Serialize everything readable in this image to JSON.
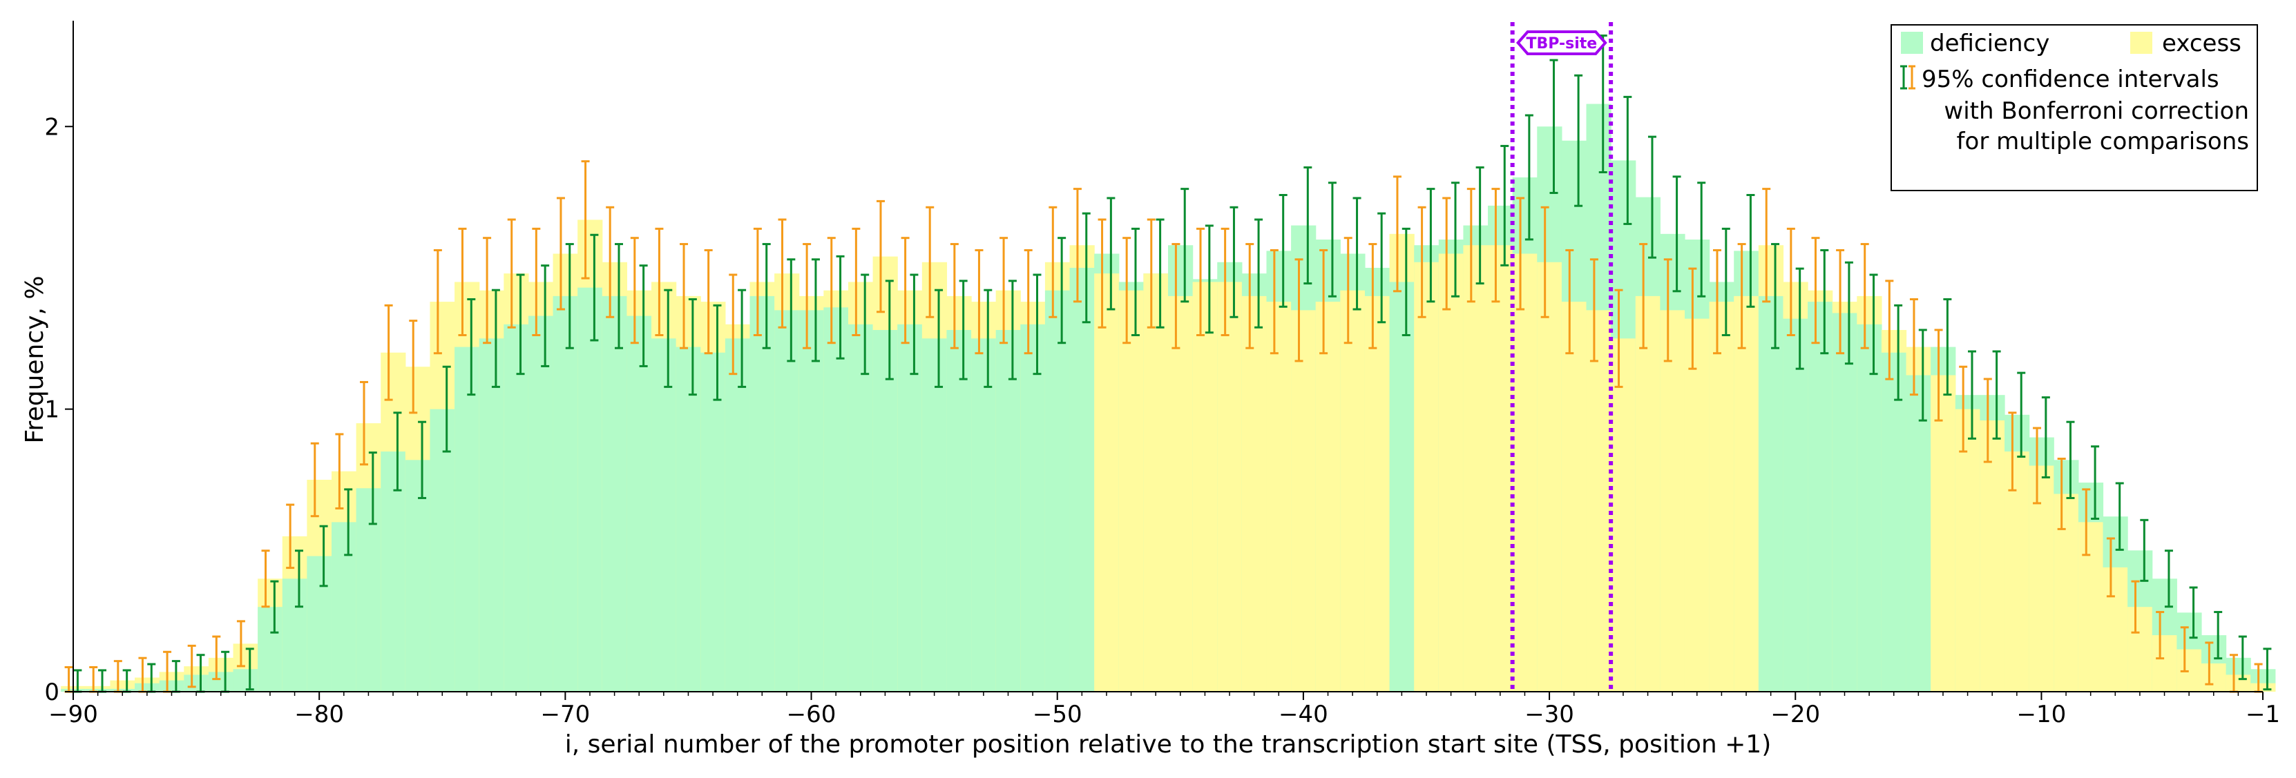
{
  "chart_data": {
    "type": "bar",
    "xlabel": "i, serial number of the promoter position relative to the transcription start site (TSS, position +1)",
    "ylabel": "Frequency, %",
    "xlim": [
      -90,
      -1
    ],
    "ylim": [
      0,
      2.35
    ],
    "x_ticks": [
      -90,
      -80,
      -70,
      -60,
      -50,
      -40,
      -30,
      -20,
      -10,
      -1
    ],
    "y_ticks": [
      0,
      1,
      2
    ],
    "x_tick_labels": [
      "−90",
      "−80",
      "−70",
      "−60",
      "−50",
      "−40",
      "−30",
      "−20",
      "−10",
      "−1"
    ],
    "y_tick_labels": [
      "0",
      "1",
      "2"
    ],
    "x": [
      -90,
      -89,
      -88,
      -87,
      -86,
      -85,
      -84,
      -83,
      -82,
      -81,
      -80,
      -79,
      -78,
      -77,
      -76,
      -75,
      -74,
      -73,
      -72,
      -71,
      -70,
      -69,
      -68,
      -67,
      -66,
      -65,
      -64,
      -63,
      -62,
      -61,
      -60,
      -59,
      -58,
      -57,
      -56,
      -55,
      -54,
      -53,
      -52,
      -51,
      -50,
      -49,
      -48,
      -47,
      -46,
      -45,
      -44,
      -43,
      -42,
      -41,
      -40,
      -39,
      -38,
      -37,
      -36,
      -35,
      -34,
      -33,
      -32,
      -31,
      -30,
      -29,
      -28,
      -27,
      -26,
      -25,
      -24,
      -23,
      -22,
      -21,
      -20,
      -19,
      -18,
      -17,
      -16,
      -15,
      -14,
      -13,
      -12,
      -11,
      -10,
      -9,
      -8,
      -7,
      -6,
      -5,
      -4,
      -3,
      -2,
      -1
    ],
    "series": [
      {
        "name": "deficiency",
        "color": "#b3fbc8",
        "values": [
          0.01,
          0.01,
          0.01,
          0.03,
          0.04,
          0.06,
          0.07,
          0.08,
          0.3,
          0.4,
          0.48,
          0.6,
          0.72,
          0.85,
          0.82,
          1.0,
          1.22,
          1.25,
          1.3,
          1.33,
          1.4,
          1.43,
          1.4,
          1.33,
          1.25,
          1.22,
          1.2,
          1.25,
          1.4,
          1.35,
          1.35,
          1.36,
          1.3,
          1.28,
          1.3,
          1.25,
          1.28,
          1.25,
          1.28,
          1.3,
          1.42,
          1.5,
          1.55,
          1.45,
          1.48,
          1.58,
          1.46,
          1.52,
          1.48,
          1.56,
          1.65,
          1.6,
          1.55,
          1.5,
          1.45,
          1.58,
          1.6,
          1.65,
          1.72,
          1.82,
          2.0,
          1.95,
          2.08,
          1.88,
          1.75,
          1.62,
          1.6,
          1.45,
          1.56,
          1.4,
          1.32,
          1.38,
          1.34,
          1.3,
          1.2,
          1.12,
          1.22,
          1.05,
          1.05,
          0.98,
          0.9,
          0.82,
          0.74,
          0.62,
          0.5,
          0.4,
          0.28,
          0.2,
          0.12,
          0.08
        ]
      },
      {
        "name": "excess",
        "color": "#fffb9e",
        "values": [
          0.02,
          0.02,
          0.04,
          0.05,
          0.07,
          0.09,
          0.12,
          0.17,
          0.4,
          0.55,
          0.75,
          0.78,
          0.95,
          1.2,
          1.15,
          1.38,
          1.45,
          1.42,
          1.48,
          1.45,
          1.55,
          1.67,
          1.52,
          1.42,
          1.45,
          1.4,
          1.38,
          1.3,
          1.45,
          1.48,
          1.4,
          1.42,
          1.45,
          1.54,
          1.42,
          1.52,
          1.4,
          1.38,
          1.42,
          1.38,
          1.52,
          1.58,
          1.48,
          1.42,
          1.48,
          1.4,
          1.45,
          1.45,
          1.4,
          1.38,
          1.35,
          1.38,
          1.42,
          1.4,
          1.62,
          1.52,
          1.55,
          1.58,
          1.58,
          1.55,
          1.52,
          1.38,
          1.35,
          1.25,
          1.4,
          1.35,
          1.32,
          1.38,
          1.4,
          1.58,
          1.45,
          1.42,
          1.38,
          1.4,
          1.28,
          1.22,
          1.12,
          1.0,
          0.96,
          0.85,
          0.8,
          0.7,
          0.6,
          0.44,
          0.3,
          0.2,
          0.15,
          0.1,
          0.06,
          0.03
        ]
      }
    ],
    "legend": {
      "position": "top-right",
      "deficiency_label": "deficiency",
      "excess_label": "excess",
      "ci_line1": "95% confidence intervals",
      "ci_line2": "with Bonferroni correction",
      "ci_line3": "for multiple comparisons",
      "ci_colors": [
        "#0a8c30",
        "#f59b1a"
      ]
    },
    "annotation": {
      "label": "TBP-site",
      "x_range": [
        -31.5,
        -27.5
      ],
      "color": "#a100f2"
    },
    "grid": false
  }
}
